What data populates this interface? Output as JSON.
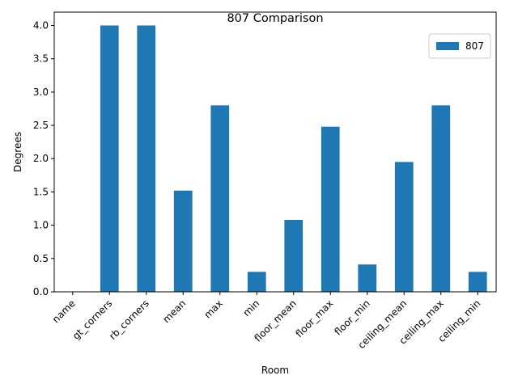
{
  "chart_data": {
    "type": "bar",
    "title": "807 Comparison",
    "xlabel": "Room",
    "ylabel": "Degrees",
    "categories": [
      "name",
      "gt_corners",
      "rb_corners",
      "mean",
      "max",
      "min",
      "floor_mean",
      "floor_max",
      "floor_min",
      "ceiling_mean",
      "ceiling_max",
      "ceiling_min"
    ],
    "series": [
      {
        "name": "807",
        "values": [
          0,
          4.0,
          4.0,
          1.52,
          2.8,
          0.3,
          1.08,
          2.48,
          0.41,
          1.95,
          2.8,
          0.3
        ]
      }
    ],
    "ylim": [
      0,
      4.2
    ],
    "yticks": [
      "0.0",
      "0.5",
      "1.0",
      "1.5",
      "2.0",
      "2.5",
      "3.0",
      "3.5",
      "4.0"
    ],
    "legend_position": "top-right",
    "grid": false,
    "colors": {
      "bar": "#1f77b4"
    }
  }
}
